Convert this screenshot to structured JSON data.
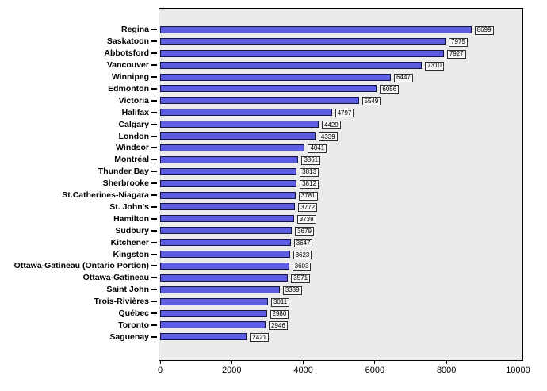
{
  "chart_data": {
    "type": "bar",
    "orientation": "horizontal",
    "title": "",
    "xlabel": "",
    "ylabel": "",
    "categories": [
      "Regina",
      "Saskatoon",
      "Abbotsford",
      "Vancouver",
      "Winnipeg",
      "Edmonton",
      "Victoria",
      "Halifax",
      "Calgary",
      "London",
      "Windsor",
      "Montréal",
      "Thunder Bay",
      "Sherbrooke",
      "St.Catherines-Niagara",
      "St. John's",
      "Hamilton",
      "Sudbury",
      "Kitchener",
      "Kingston",
      "Ottawa-Gatineau (Ontario Portion)",
      "Ottawa-Gatineau",
      "Saint John",
      "Trois-Rivières",
      "Québec",
      "Toronto",
      "Saguenay"
    ],
    "values": [
      8699,
      7975,
      7927,
      7310,
      6447,
      6056,
      5549,
      4797,
      4429,
      4339,
      4041,
      3861,
      3813,
      3812,
      3781,
      3772,
      3738,
      3679,
      3647,
      3623,
      3603,
      3571,
      3339,
      3011,
      2980,
      2946,
      2421
    ],
    "value_labels_shown": true,
    "x_tick_values": [
      0,
      2000,
      4000,
      6000,
      8000,
      10000
    ],
    "x_tick_labels": [
      "0",
      "2000",
      "4000",
      "6000",
      "8000",
      "10000"
    ],
    "xlim": [
      0,
      10100
    ],
    "grid": false,
    "legend": "none",
    "bar_color": "#5d5de4",
    "bar_border_color": "#14143c",
    "plot_bg_color": "#ebebeb"
  }
}
